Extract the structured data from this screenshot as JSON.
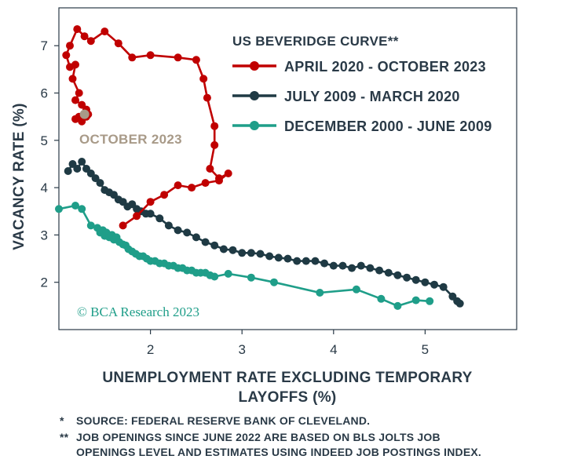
{
  "chart_data": {
    "type": "line",
    "title": "US BEVERIDGE CURVE**",
    "xlabel": "UNEMPLOYMENT RATE EXCLUDING TEMPORARY LAYOFFS (%)",
    "xlabel_lines": [
      "UNEMPLOYMENT RATE EXCLUDING TEMPORARY",
      "LAYOFFS (%)"
    ],
    "ylabel": "VACANCY RATE (%)",
    "xlim": [
      1.0,
      6.0
    ],
    "ylim": [
      1.0,
      7.8
    ],
    "xticks": [
      2,
      3,
      4,
      5
    ],
    "yticks": [
      2,
      3,
      4,
      5,
      6,
      7
    ],
    "grid": false,
    "legend_position": "top-right",
    "annotation": {
      "text": "OCTOBER 2023",
      "x": 1.28,
      "y": 5.55
    },
    "source_brand": "© BCA Research 2023",
    "footnotes": [
      {
        "marker": "*",
        "lines": [
          "SOURCE: FEDERAL RESERVE BANK OF CLEVELAND."
        ]
      },
      {
        "marker": "**",
        "lines": [
          "JOB OPENINGS SINCE JUNE 2022 ARE BASED ON BLS JOLTS JOB",
          "OPENINGS LEVEL AND ESTIMATES USING INDEED JOB POSTINGS INDEX."
        ]
      }
    ],
    "series": [
      {
        "name": "DECEMBER 2000 - JUNE 2009",
        "color": "#1f9e89",
        "x": [
          1.0,
          1.18,
          1.25,
          1.35,
          1.42,
          1.45,
          1.48,
          1.5,
          1.52,
          1.55,
          1.58,
          1.6,
          1.63,
          1.66,
          1.7,
          1.73,
          1.76,
          1.8,
          1.84,
          1.88,
          1.92,
          1.96,
          2.0,
          2.05,
          2.1,
          2.15,
          2.2,
          2.25,
          2.3,
          2.35,
          2.4,
          2.45,
          2.5,
          2.55,
          2.6,
          2.65,
          2.7,
          2.85,
          3.1,
          3.35,
          3.85,
          4.25,
          4.52,
          4.7,
          4.9,
          5.05
        ],
        "y": [
          3.55,
          3.62,
          3.55,
          3.2,
          3.15,
          3.05,
          3.1,
          2.98,
          3.05,
          2.95,
          3.0,
          2.9,
          2.95,
          2.85,
          2.8,
          2.78,
          2.7,
          2.65,
          2.6,
          2.55,
          2.55,
          2.5,
          2.45,
          2.45,
          2.4,
          2.4,
          2.35,
          2.35,
          2.3,
          2.3,
          2.25,
          2.25,
          2.2,
          2.2,
          2.2,
          2.15,
          2.12,
          2.18,
          2.1,
          2.0,
          1.78,
          1.85,
          1.65,
          1.5,
          1.62,
          1.6
        ]
      },
      {
        "name": "JULY 2009 - MARCH 2020",
        "color": "#1f3a44",
        "x": [
          1.1,
          1.15,
          1.2,
          1.25,
          1.3,
          1.35,
          1.4,
          1.45,
          1.5,
          1.55,
          1.6,
          1.65,
          1.7,
          1.75,
          1.8,
          1.85,
          1.9,
          1.95,
          2.0,
          2.1,
          2.2,
          2.3,
          2.4,
          2.5,
          2.6,
          2.7,
          2.8,
          2.9,
          3.0,
          3.1,
          3.2,
          3.3,
          3.4,
          3.5,
          3.6,
          3.7,
          3.8,
          3.9,
          4.0,
          4.1,
          4.2,
          4.3,
          4.4,
          4.5,
          4.6,
          4.7,
          4.8,
          4.9,
          5.0,
          5.1,
          5.2,
          5.3,
          5.35,
          5.38
        ],
        "y": [
          4.35,
          4.5,
          4.4,
          4.55,
          4.4,
          4.3,
          4.2,
          4.1,
          3.95,
          3.9,
          3.85,
          3.75,
          3.7,
          3.6,
          3.65,
          3.55,
          3.5,
          3.45,
          3.45,
          3.35,
          3.2,
          3.1,
          3.05,
          2.95,
          2.85,
          2.78,
          2.7,
          2.68,
          2.62,
          2.62,
          2.6,
          2.55,
          2.52,
          2.5,
          2.45,
          2.45,
          2.45,
          2.4,
          2.35,
          2.35,
          2.3,
          2.35,
          2.3,
          2.25,
          2.2,
          2.15,
          2.1,
          2.05,
          2.0,
          1.95,
          1.9,
          1.7,
          1.6,
          1.55
        ]
      },
      {
        "name": "APRIL 2020 - OCTOBER 2023",
        "color": "#c00000",
        "x": [
          1.7,
          1.85,
          2.0,
          2.15,
          2.3,
          2.45,
          2.6,
          2.75,
          2.85,
          2.75,
          2.65,
          2.7,
          2.7,
          2.62,
          2.58,
          2.5,
          2.3,
          2.0,
          1.8,
          1.65,
          1.5,
          1.35,
          1.28,
          1.2,
          1.12,
          1.08,
          1.12,
          1.18,
          1.15,
          1.22,
          1.18,
          1.25,
          1.3,
          1.28,
          1.22,
          1.18,
          1.25,
          1.3,
          1.32
        ],
        "y": [
          3.2,
          3.4,
          3.7,
          3.85,
          4.05,
          4.0,
          4.1,
          4.15,
          4.3,
          4.2,
          4.4,
          4.9,
          5.3,
          5.9,
          6.3,
          6.7,
          6.75,
          6.8,
          6.75,
          7.05,
          7.3,
          7.1,
          7.2,
          7.35,
          7.0,
          6.8,
          6.55,
          6.6,
          6.3,
          6.0,
          5.85,
          5.75,
          5.65,
          5.55,
          5.5,
          5.45,
          5.4,
          5.5,
          5.55
        ]
      }
    ]
  }
}
